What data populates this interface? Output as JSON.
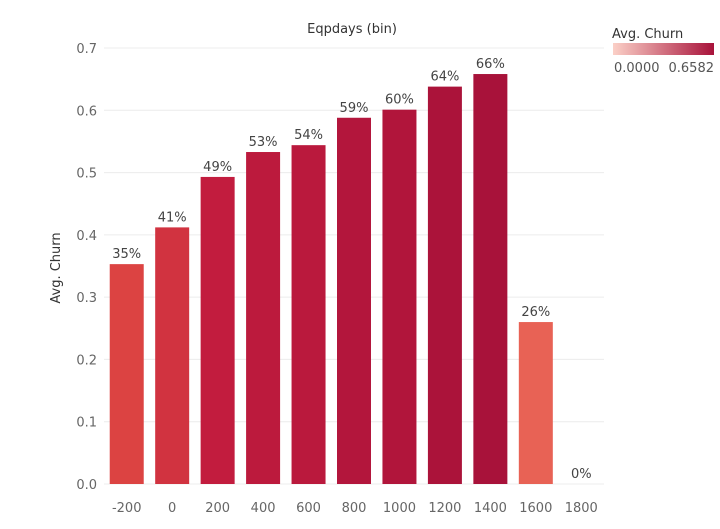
{
  "chart_data": {
    "type": "bar",
    "title": "Eqpdays (bin)",
    "xlabel": "",
    "ylabel": "Avg. Churn",
    "categories": [
      "-200",
      "0",
      "200",
      "400",
      "600",
      "800",
      "1000",
      "1200",
      "1400",
      "1600",
      "1800"
    ],
    "values": [
      0.353,
      0.412,
      0.493,
      0.533,
      0.544,
      0.588,
      0.601,
      0.638,
      0.6582,
      0.26,
      0.0
    ],
    "data_labels": [
      "35%",
      "41%",
      "49%",
      "53%",
      "54%",
      "59%",
      "60%",
      "64%",
      "66%",
      "26%",
      "0%"
    ],
    "ylim": [
      0,
      0.7
    ],
    "yticks": [
      "0.0",
      "0.1",
      "0.2",
      "0.3",
      "0.4",
      "0.5",
      "0.6",
      "0.7"
    ],
    "grid": true,
    "legend": {
      "title": "Avg. Churn",
      "min_label": "0.0000",
      "max_label": "0.6582",
      "placement": "top-right",
      "min_color": "#fbd0c7",
      "max_color": "#a8123a"
    },
    "colors": {
      "ramp": [
        "#fbd0c7",
        "#f4846d",
        "#e04a43",
        "#c21c3e",
        "#a8123a"
      ]
    }
  }
}
